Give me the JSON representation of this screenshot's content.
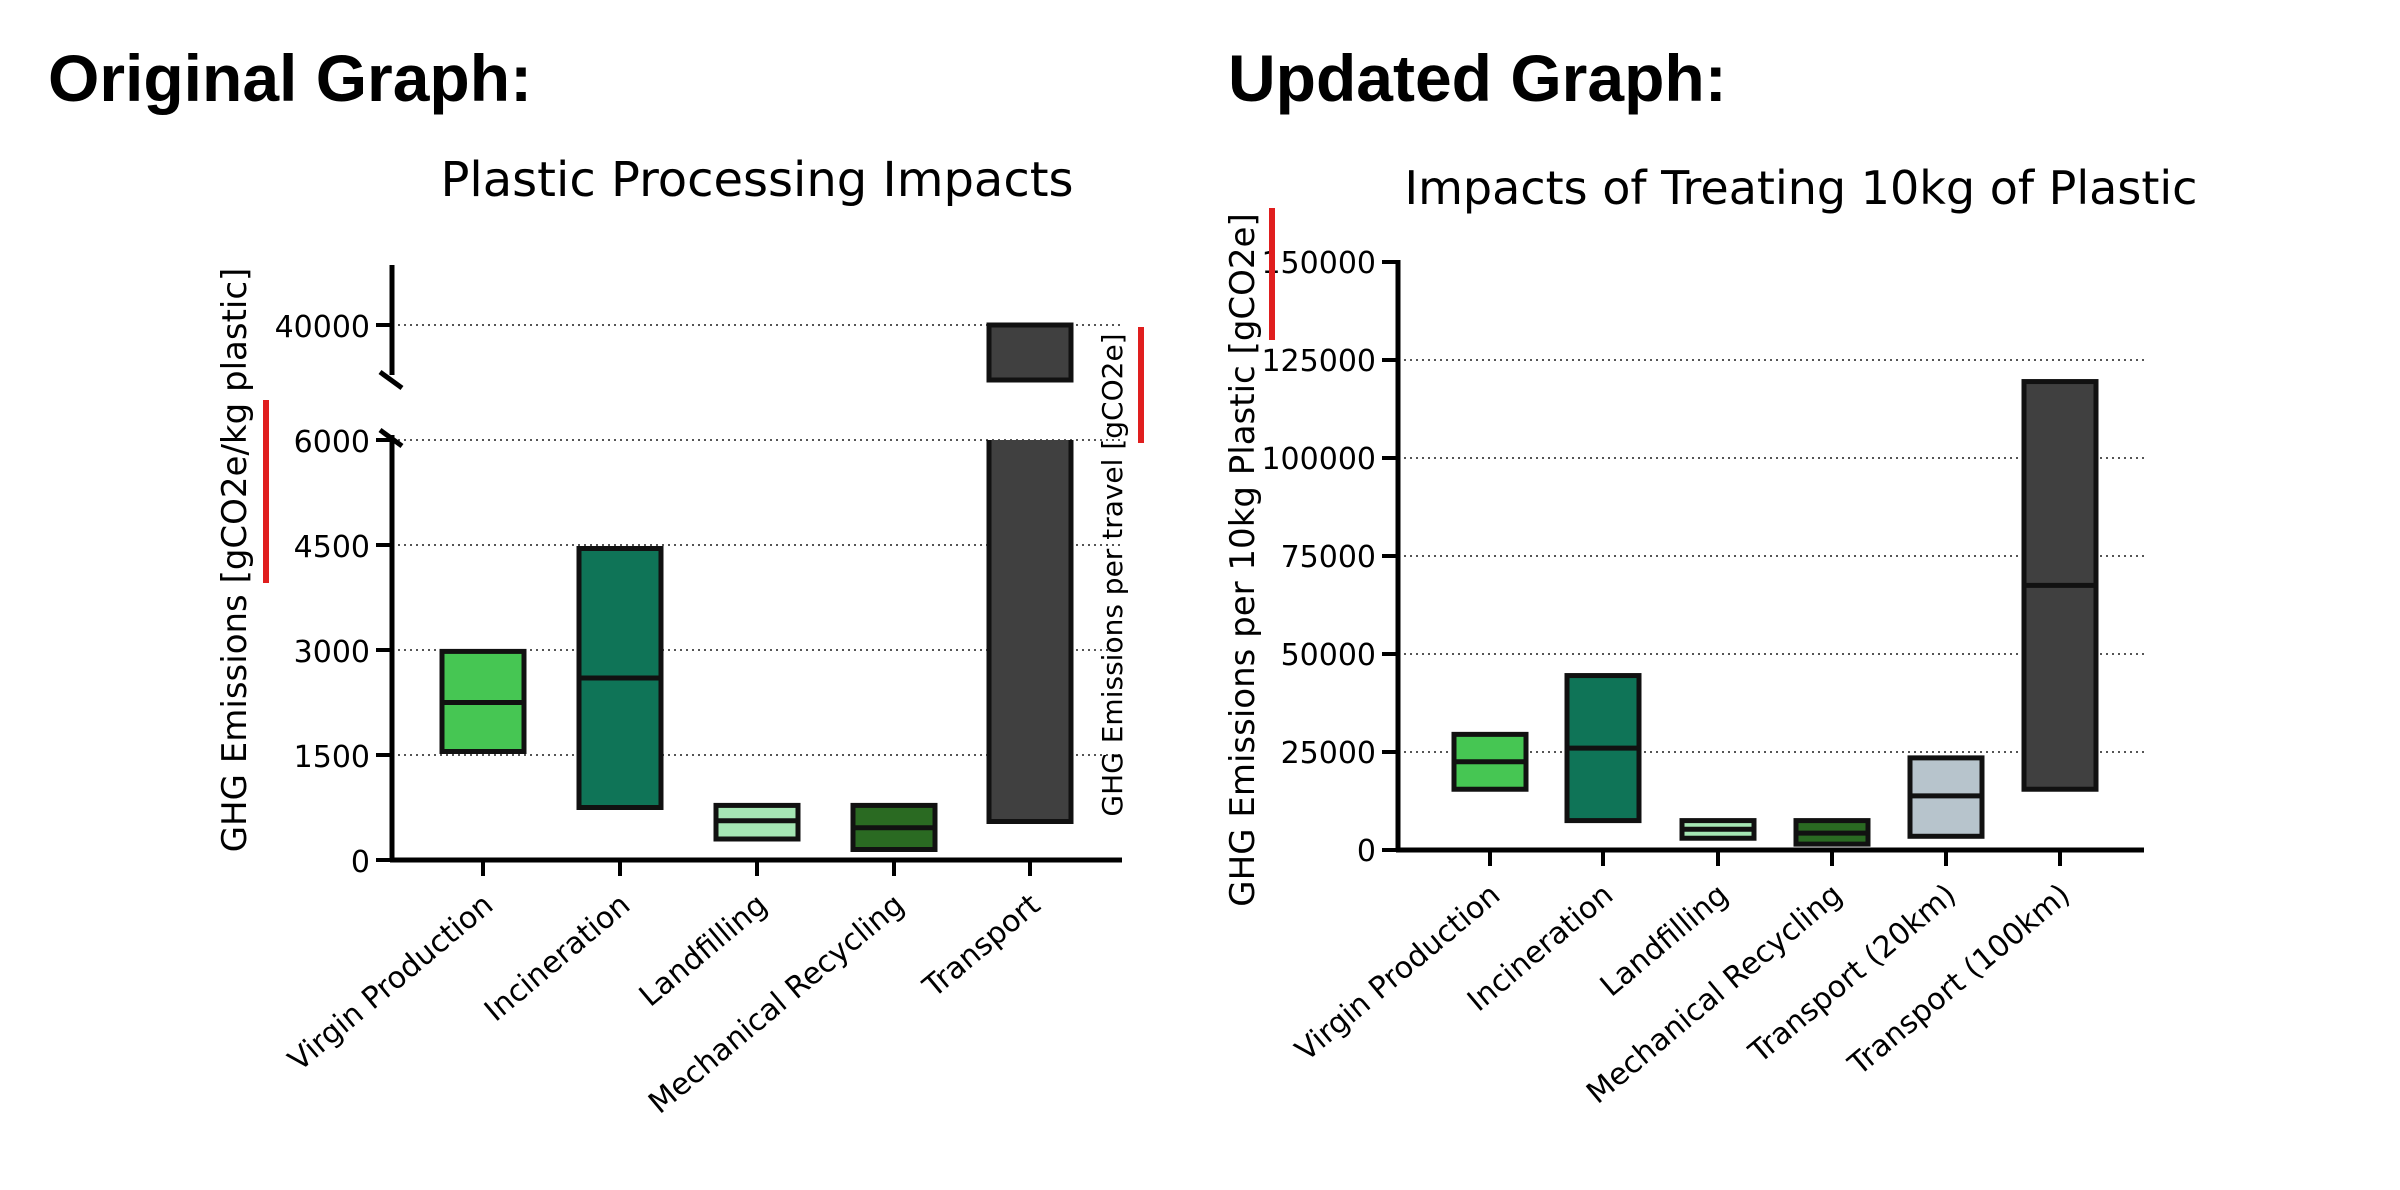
{
  "headings": {
    "left": "Original Graph:",
    "right": "Updated Graph:"
  },
  "chart_data": [
    {
      "type": "floating-bar",
      "title": "Plastic Processing Impacts",
      "ylabel": "GHG Emissions [gCO2e/kg plastic]",
      "ylabel_secondary": "GHG Emissions per travel [gCO2e]",
      "axis_break": true,
      "ylim_lower": [
        0,
        6000
      ],
      "ylim_upper": [
        40000,
        40000
      ],
      "yticks": [
        0,
        1500,
        3000,
        4500,
        6000,
        40000
      ],
      "ytick_labels": [
        "0",
        "1500",
        "3000",
        "4500",
        "6000",
        "40000"
      ],
      "grid": "horizontal dotted",
      "categories": [
        "Virgin Production",
        "Incineration",
        "Landfilling",
        "Mechanical Recycling",
        "Transport"
      ],
      "bars": [
        {
          "category": "Virgin Production",
          "low": 1550,
          "high": 2980,
          "mid": 2250,
          "color": "#46c653"
        },
        {
          "category": "Incineration",
          "low": 750,
          "high": 4450,
          "mid": 2600,
          "color": "#0f7457"
        },
        {
          "category": "Landfilling",
          "low": 300,
          "high": 780,
          "mid": 560,
          "color": "#a5e6b4"
        },
        {
          "category": "Mechanical Recycling",
          "low": 150,
          "high": 780,
          "mid": 460,
          "color": "#2a6a22"
        },
        {
          "category": "Transport",
          "low": 550,
          "high": 40000,
          "mid": null,
          "color": "#404040"
        }
      ],
      "annotations": [
        "red marker beside primary y-axis label",
        "red marker beside secondary y-axis label"
      ]
    },
    {
      "type": "floating-bar",
      "title": "Impacts of Treating 10kg of Plastic",
      "ylabel": "GHG Emissions per 10kg Plastic [gCO2e]",
      "ylim": [
        0,
        150000
      ],
      "yticks": [
        0,
        25000,
        50000,
        75000,
        100000,
        125000,
        150000
      ],
      "ytick_labels": [
        "0",
        "25000",
        "50000",
        "75000",
        "100000",
        "125000",
        "150000"
      ],
      "grid": "horizontal dotted",
      "categories": [
        "Virgin Production",
        "Incineration",
        "Landfilling",
        "Mechanical Recycling",
        "Transport (20km)",
        "Transport (100km)"
      ],
      "bars": [
        {
          "category": "Virgin Production",
          "low": 15500,
          "high": 29500,
          "mid": 22500,
          "color": "#46c653"
        },
        {
          "category": "Incineration",
          "low": 7500,
          "high": 44500,
          "mid": 26000,
          "color": "#0f7457"
        },
        {
          "category": "Landfilling",
          "low": 3000,
          "high": 7500,
          "mid": 5300,
          "color": "#a5e6b4"
        },
        {
          "category": "Mechanical Recycling",
          "low": 1500,
          "high": 7500,
          "mid": 4300,
          "color": "#2a6a22"
        },
        {
          "category": "Transport (20km)",
          "low": 3500,
          "high": 23500,
          "mid": 13800,
          "color": "#b7c4cc"
        },
        {
          "category": "Transport (100km)",
          "low": 15500,
          "high": 119500,
          "mid": 67500,
          "color": "#404040"
        }
      ],
      "annotations": [
        "red marker beside y-axis unit"
      ]
    }
  ]
}
